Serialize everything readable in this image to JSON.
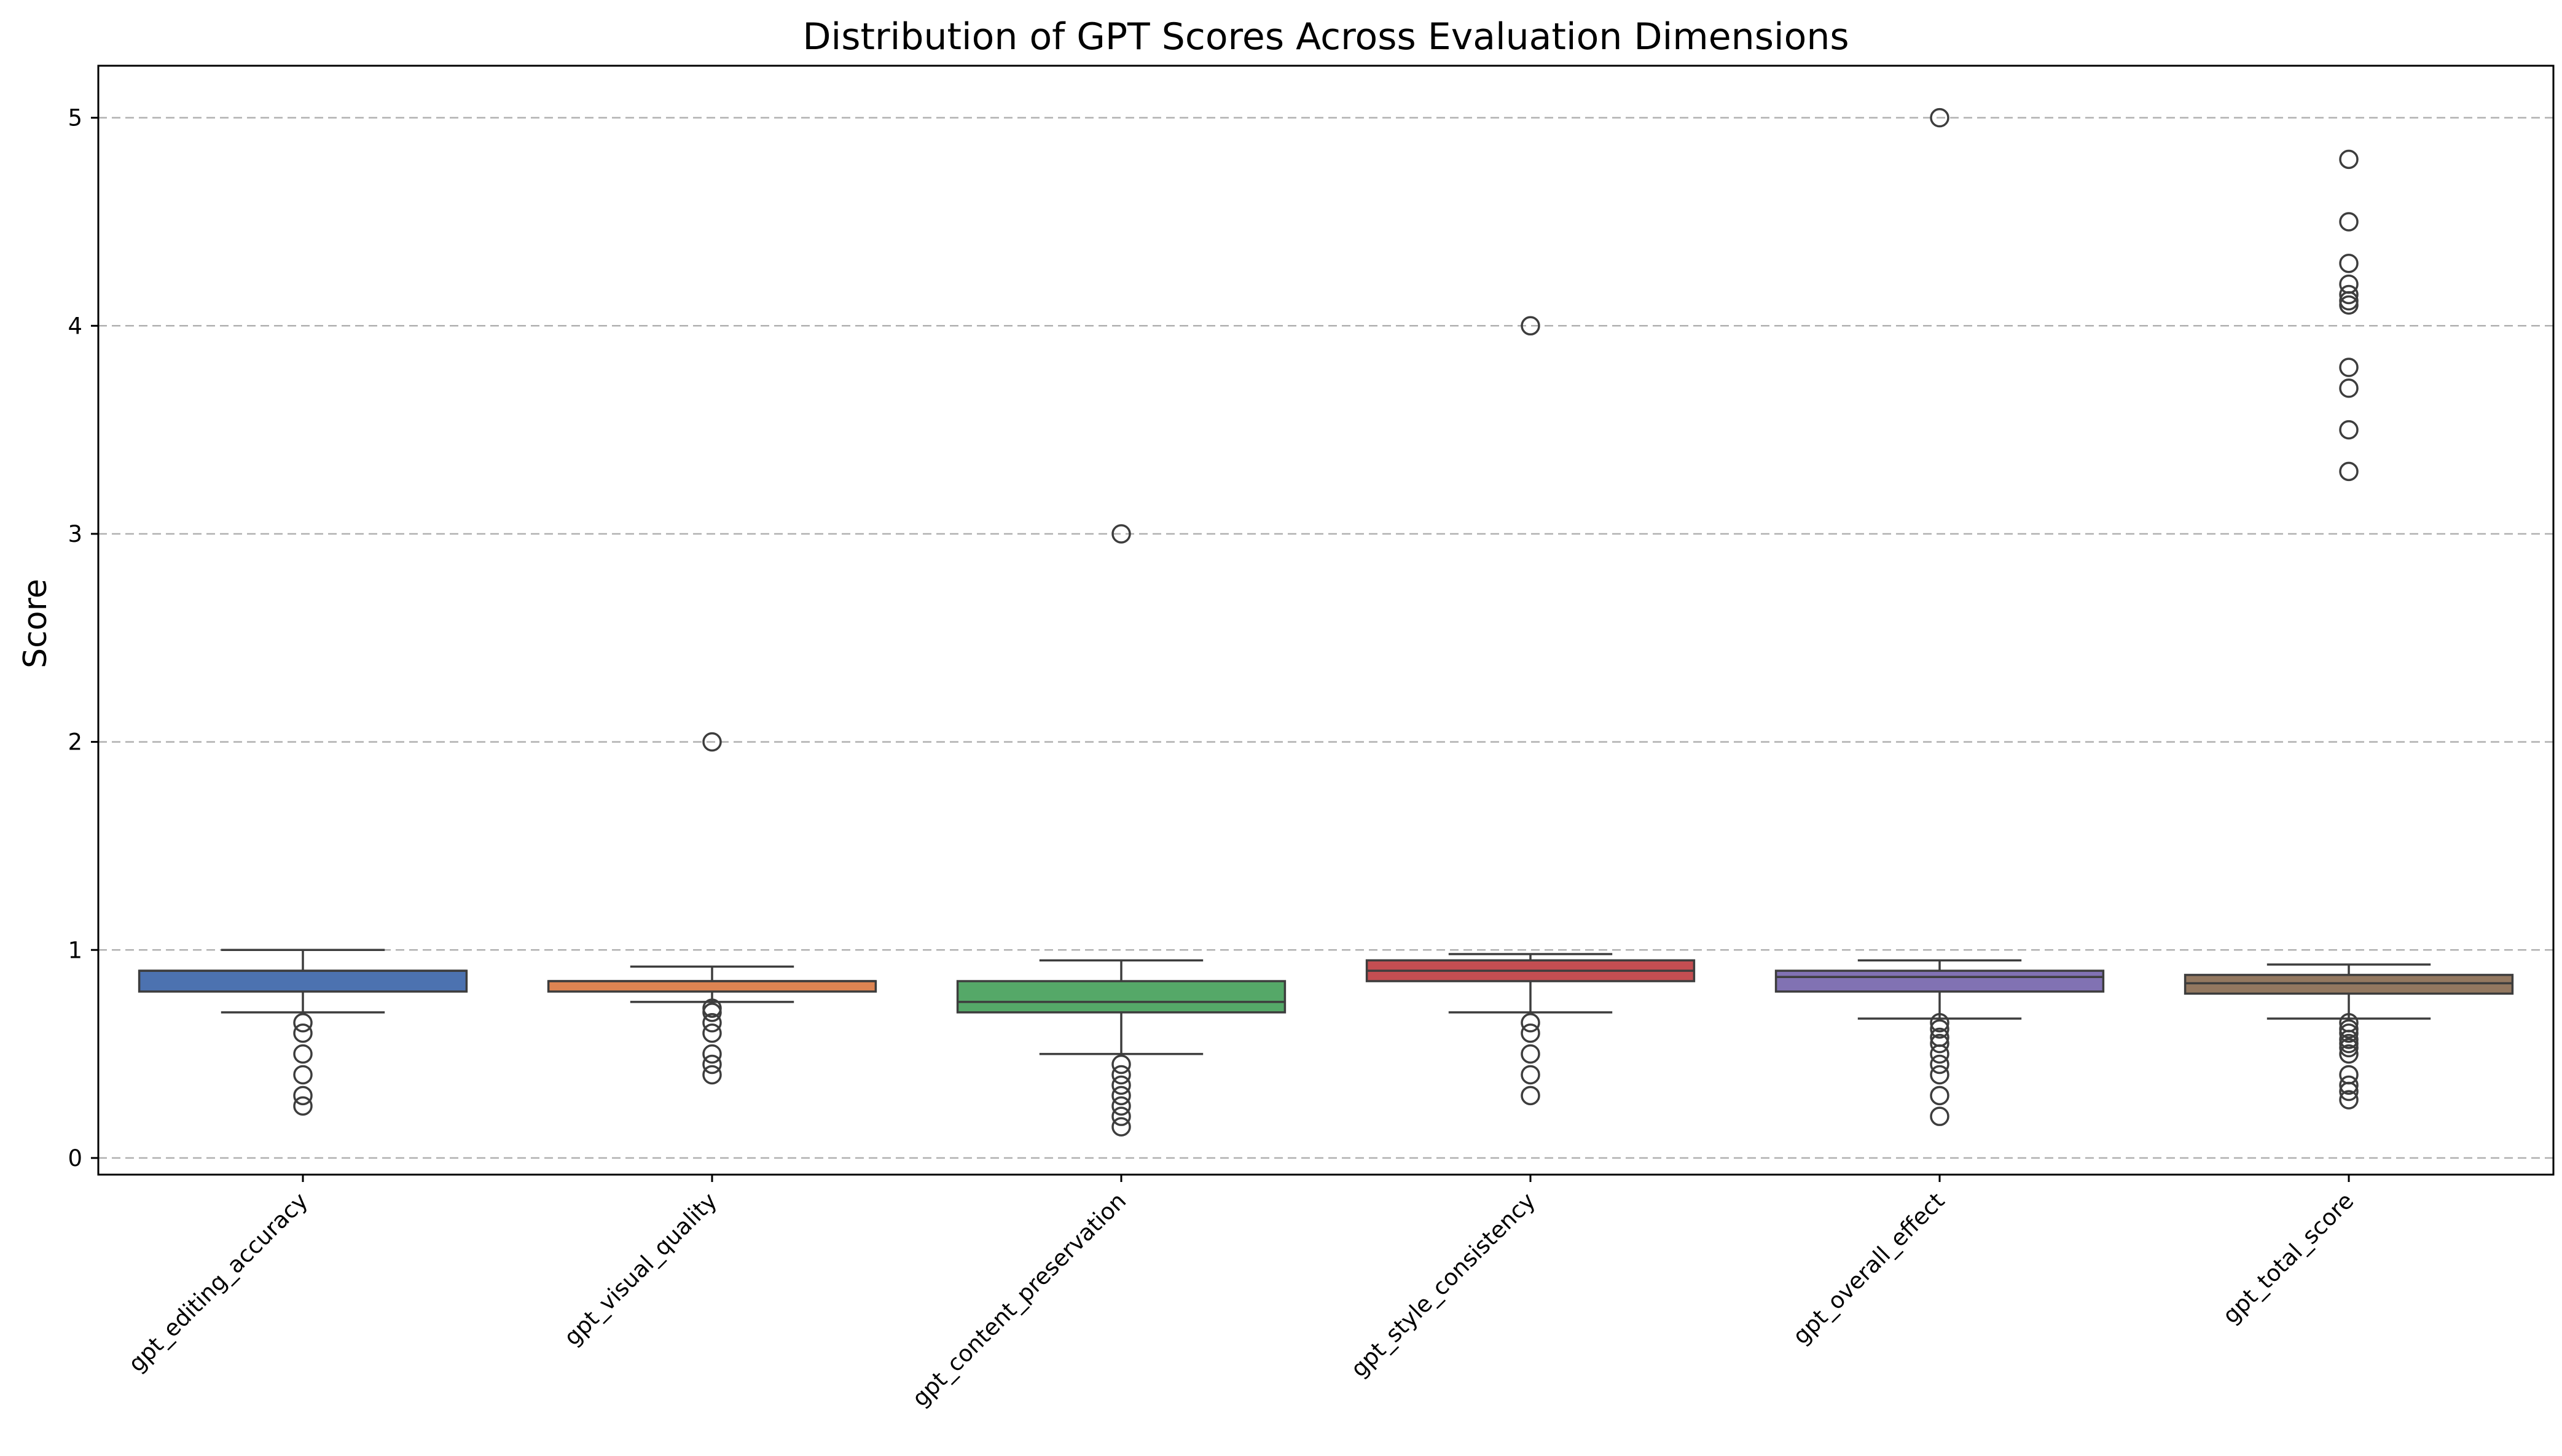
{
  "chart_data": {
    "type": "box",
    "title": "Distribution of GPT Scores Across Evaluation Dimensions",
    "xlabel": "",
    "ylabel": "Score",
    "ylim": [
      -0.08,
      5.25
    ],
    "yticks": [
      0,
      1,
      2,
      3,
      4,
      5
    ],
    "grid": "y-dashed",
    "categories": [
      "gpt_editing_accuracy",
      "gpt_visual_quality",
      "gpt_content_preservation",
      "gpt_style_consistency",
      "gpt_overall_effect",
      "gpt_total_score"
    ],
    "series": [
      {
        "color": "#4c72b0",
        "whislo": 0.7,
        "q1": 0.8,
        "median": 0.9,
        "q3": 0.9,
        "whishi": 1.0,
        "fliers": [
          0.65,
          0.6,
          0.5,
          0.4,
          0.3,
          0.25
        ]
      },
      {
        "color": "#dd8452",
        "whislo": 0.75,
        "q1": 0.8,
        "median": 0.85,
        "q3": 0.85,
        "whishi": 0.92,
        "fliers": [
          2.0,
          0.72,
          0.7,
          0.65,
          0.6,
          0.5,
          0.45,
          0.4
        ]
      },
      {
        "color": "#55a868",
        "whislo": 0.5,
        "q1": 0.7,
        "median": 0.75,
        "q3": 0.85,
        "whishi": 0.95,
        "fliers": [
          3.0,
          0.45,
          0.4,
          0.35,
          0.3,
          0.25,
          0.2,
          0.15
        ]
      },
      {
        "color": "#c44e52",
        "whislo": 0.7,
        "q1": 0.85,
        "median": 0.9,
        "q3": 0.95,
        "whishi": 0.98,
        "fliers": [
          4.0,
          0.65,
          0.6,
          0.5,
          0.4,
          0.3
        ]
      },
      {
        "color": "#8172b3",
        "whislo": 0.67,
        "q1": 0.8,
        "median": 0.87,
        "q3": 0.9,
        "whishi": 0.95,
        "fliers": [
          5.0,
          0.65,
          0.62,
          0.58,
          0.55,
          0.5,
          0.45,
          0.4,
          0.3,
          0.2
        ]
      },
      {
        "color": "#937860",
        "whislo": 0.67,
        "q1": 0.79,
        "median": 0.84,
        "q3": 0.88,
        "whishi": 0.93,
        "fliers": [
          4.8,
          4.5,
          4.3,
          4.2,
          4.15,
          4.12,
          4.1,
          3.8,
          3.7,
          3.5,
          3.3,
          0.65,
          0.62,
          0.6,
          0.57,
          0.55,
          0.53,
          0.5,
          0.4,
          0.35,
          0.32,
          0.28
        ]
      }
    ]
  }
}
